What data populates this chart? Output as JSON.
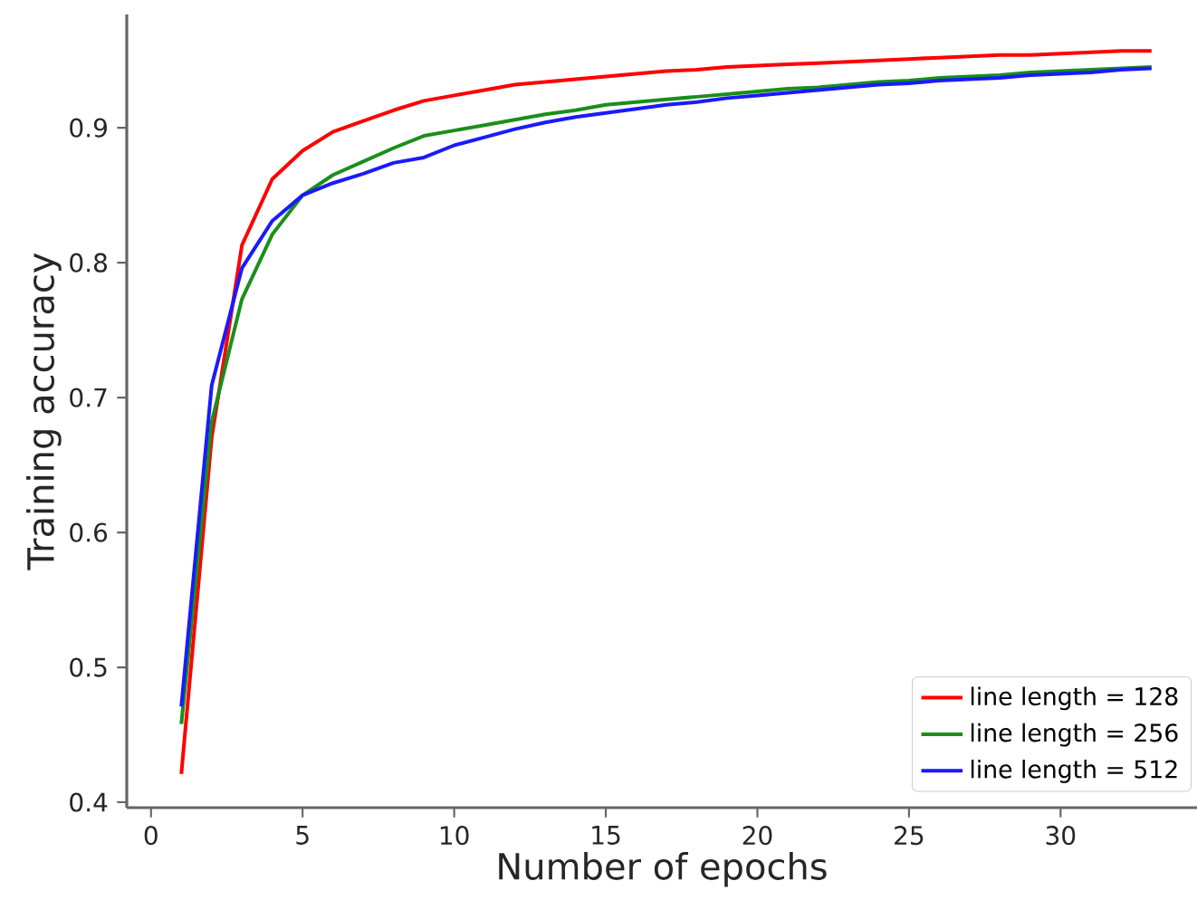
{
  "chart_data": {
    "type": "line",
    "xlabel": "Number of epochs",
    "ylabel": "Training accuracy",
    "x": [
      1,
      2,
      3,
      4,
      5,
      6,
      7,
      8,
      9,
      10,
      11,
      12,
      13,
      14,
      15,
      16,
      17,
      18,
      19,
      20,
      21,
      22,
      23,
      24,
      25,
      26,
      27,
      28,
      29,
      30,
      31,
      32,
      33
    ],
    "series": [
      {
        "name": "line length = 128",
        "color": "#ff0000",
        "values": [
          0.421,
          0.67,
          0.813,
          0.862,
          0.883,
          0.897,
          0.905,
          0.913,
          0.92,
          0.924,
          0.928,
          0.932,
          0.934,
          0.936,
          0.938,
          0.94,
          0.942,
          0.943,
          0.945,
          0.946,
          0.947,
          0.948,
          0.949,
          0.95,
          0.951,
          0.952,
          0.953,
          0.954,
          0.954,
          0.955,
          0.956,
          0.957,
          0.957
        ]
      },
      {
        "name": "line length = 256",
        "color": "#1a8f1a",
        "values": [
          0.458,
          0.682,
          0.773,
          0.821,
          0.85,
          0.865,
          0.875,
          0.885,
          0.894,
          0.898,
          0.902,
          0.906,
          0.91,
          0.913,
          0.917,
          0.919,
          0.921,
          0.923,
          0.925,
          0.927,
          0.929,
          0.93,
          0.932,
          0.934,
          0.935,
          0.937,
          0.938,
          0.939,
          0.941,
          0.942,
          0.943,
          0.944,
          0.945
        ]
      },
      {
        "name": "line length = 512",
        "color": "#1a1aff",
        "values": [
          0.471,
          0.709,
          0.796,
          0.831,
          0.85,
          0.859,
          0.866,
          0.874,
          0.878,
          0.887,
          0.893,
          0.899,
          0.904,
          0.908,
          0.911,
          0.914,
          0.917,
          0.919,
          0.922,
          0.924,
          0.926,
          0.928,
          0.93,
          0.932,
          0.933,
          0.935,
          0.936,
          0.937,
          0.939,
          0.94,
          0.941,
          0.943,
          0.944
        ]
      }
    ],
    "xlim": [
      -0.8,
      34.5
    ],
    "ylim": [
      0.396,
      0.984
    ],
    "xticks": [
      0,
      5,
      10,
      15,
      20,
      25,
      30
    ],
    "yticks": [
      0.4,
      0.5,
      0.6,
      0.7,
      0.8,
      0.9
    ],
    "grid": false,
    "legend": "bottom right",
    "marker": "none",
    "line_style": "solid"
  }
}
